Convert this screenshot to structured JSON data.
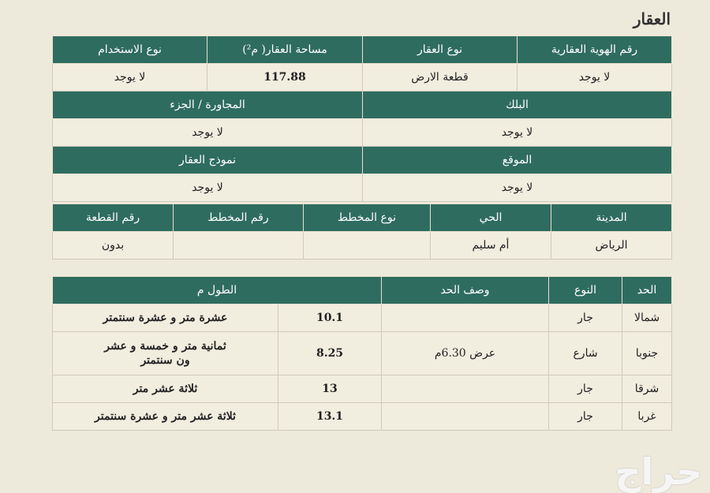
{
  "title": "العقار",
  "table1": {
    "row1_headers": [
      "رقم الهوية العقارية",
      "نوع العقار",
      "مساحة العقار( م²)",
      "نوع الاستخدام"
    ],
    "row1_values": [
      "لا يوجد",
      "قطعة الارض",
      "117.88",
      "لا يوجد"
    ],
    "row2_headers": [
      "البلك",
      "المجاورة / الجزء"
    ],
    "row2_values": [
      "لا يوجد",
      "لا يوجد"
    ],
    "row3_headers": [
      "الموقع",
      "نموذج العقار"
    ],
    "row3_values": [
      "لا يوجد",
      "لا يوجد"
    ]
  },
  "table2": {
    "headers": [
      "المدينة",
      "الحي",
      "نوع المخطط",
      "رقم المخطط",
      "رقم القطعة"
    ],
    "values": [
      "الرياض",
      "أم سليم",
      "",
      "",
      "بدون"
    ]
  },
  "borders": {
    "headers": [
      "الحد",
      "النوع",
      "وصف الحد",
      "الطول م"
    ],
    "rows": [
      {
        "side": "شمالا",
        "type": "جار",
        "desc": "",
        "length": "10.1",
        "length_text": "عشرة متر و عشرة سنتمتر"
      },
      {
        "side": "جنوبا",
        "type": "شارع",
        "desc": "عرض 6.30م",
        "length": "8.25",
        "length_text": "ثمانية متر و خمسة و عشر ون سنتمتر"
      },
      {
        "side": "شرقا",
        "type": "جار",
        "desc": "",
        "length": "13",
        "length_text": "ثلاثة عشر متر"
      },
      {
        "side": "غربا",
        "type": "جار",
        "desc": "",
        "length": "13.1",
        "length_text": "ثلاثة عشر متر و عشرة سنتمتر"
      }
    ]
  },
  "watermark": "حراج",
  "colors": {
    "header": "#2f6c60",
    "background": "#eeeadb"
  }
}
